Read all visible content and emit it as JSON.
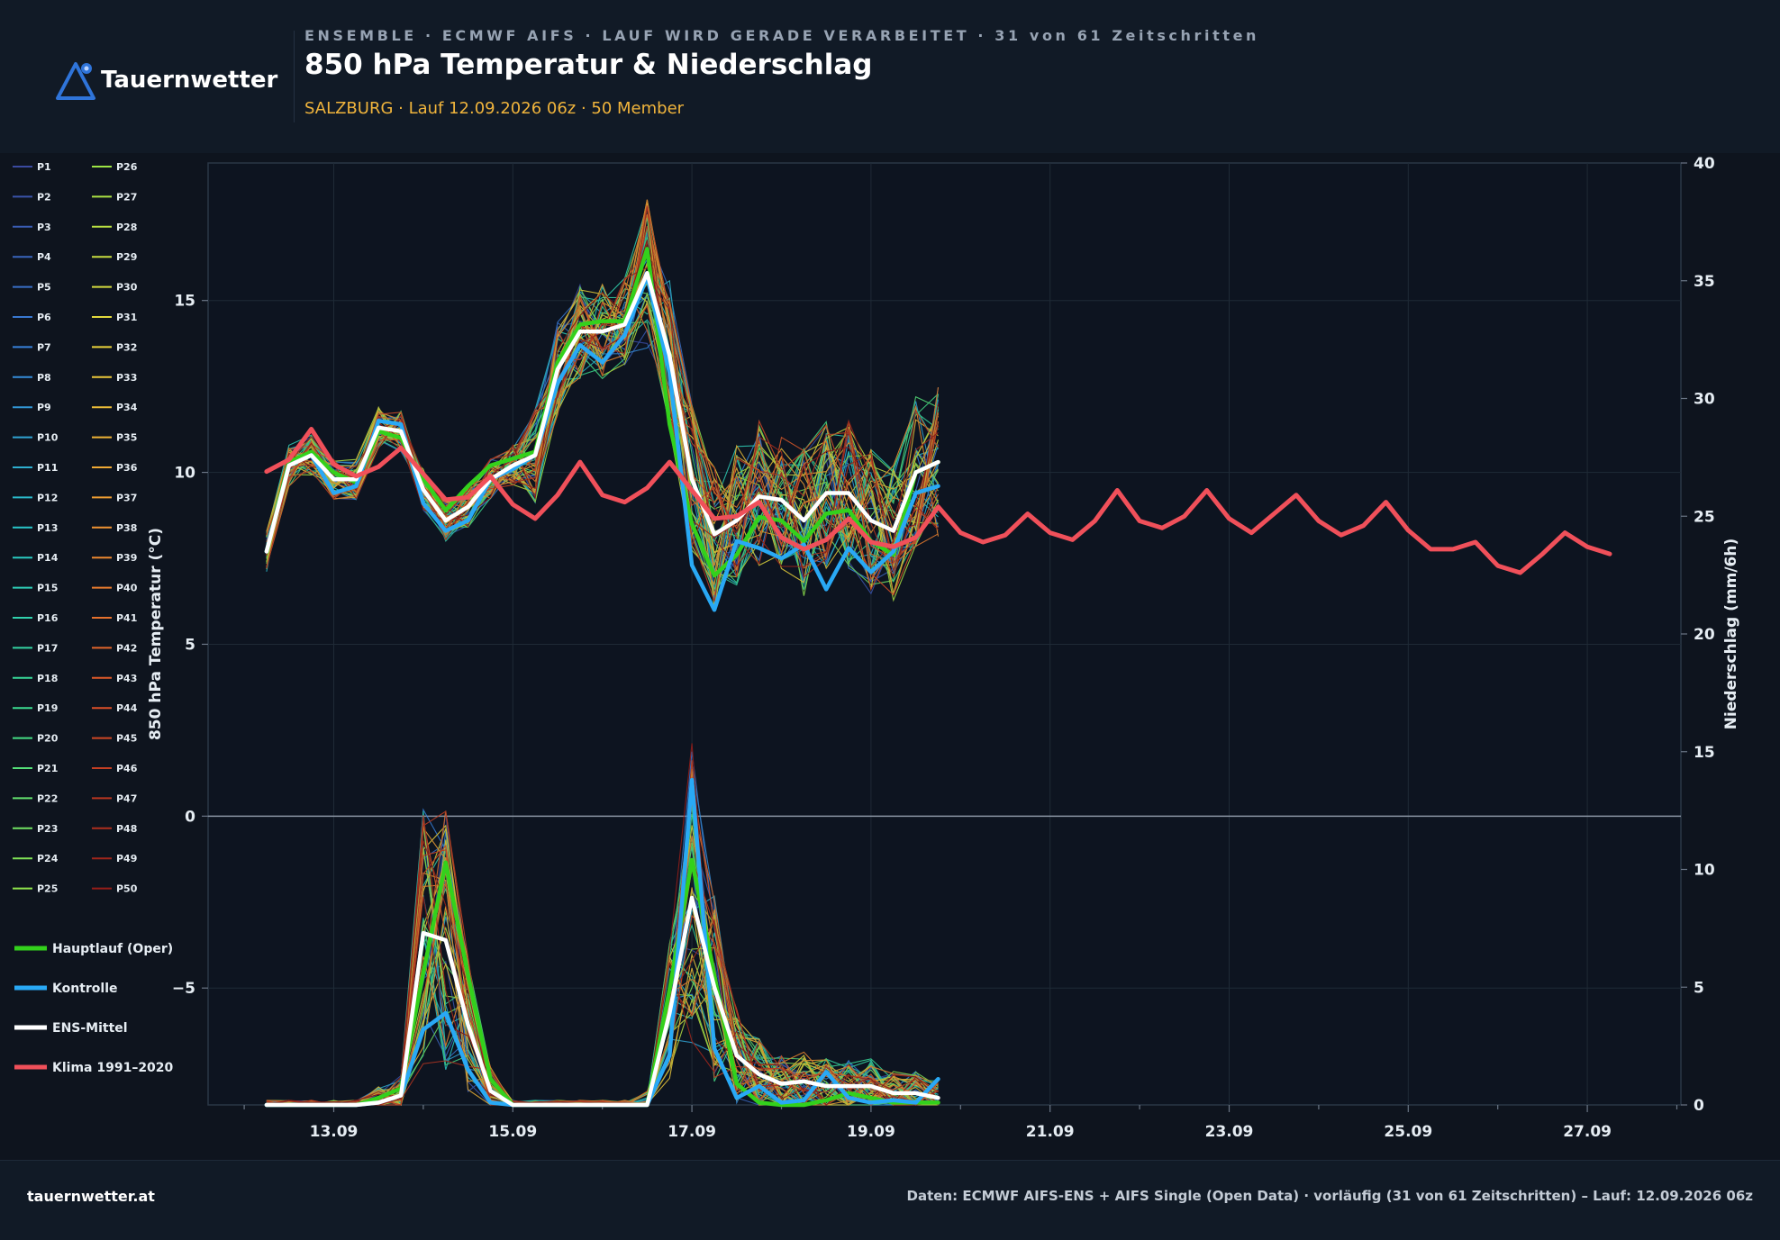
{
  "header": {
    "logo_text": "Tauernwetter",
    "kicker": "ENSEMBLE · ECMWF AIFS · LAUF WIRD GERADE VERARBEITET · 31 von 61 Zeitschritten",
    "title": "850 hPa Temperatur & Niederschlag",
    "subtitle": "SALZBURG · Lauf 12.09.2026 06z · 50 Member"
  },
  "footer": {
    "site": "tauernwetter.at",
    "source": "Daten: ECMWF AIFS-ENS + AIFS Single (Open Data) · vorläufig (31 von 61 Zeitschritten) – Lauf: 12.09.2026 06z"
  },
  "colors": {
    "oper": "#33d11c",
    "control": "#29a9f5",
    "mean": "#ffffff",
    "climate": "#f0505a",
    "background": "#0e141e",
    "grid": "#1f2a36"
  },
  "chart_data": {
    "type": "line",
    "x_unit": "date",
    "x_ticks": [
      "13.09",
      "15.09",
      "17.09",
      "19.09",
      "21.09",
      "23.09",
      "25.09",
      "27.09"
    ],
    "x_range": [
      "11.09 21z",
      "28.09 00z"
    ],
    "step_hours": 6,
    "y_left": {
      "label": "850 hPa Temperatur (°C)",
      "ticks": [
        -5,
        0,
        5,
        10,
        15
      ],
      "range": [
        -8.4,
        19
      ]
    },
    "y_right": {
      "label": "Niederschlag (mm/6h)",
      "ticks": [
        0,
        5,
        10,
        15,
        20,
        25,
        30,
        35,
        40
      ],
      "range": [
        0,
        40
      ]
    },
    "grid": true,
    "legend_position": "left",
    "member_labels": [
      "P1",
      "P2",
      "P3",
      "P4",
      "P5",
      "P6",
      "P7",
      "P8",
      "P9",
      "P10",
      "P11",
      "P12",
      "P13",
      "P14",
      "P15",
      "P16",
      "P17",
      "P18",
      "P19",
      "P20",
      "P21",
      "P22",
      "P23",
      "P24",
      "P25",
      "P26",
      "P27",
      "P28",
      "P29",
      "P30",
      "P31",
      "P32",
      "P33",
      "P34",
      "P35",
      "P36",
      "P37",
      "P38",
      "P39",
      "P40",
      "P41",
      "P42",
      "P43",
      "P44",
      "P45",
      "P46",
      "P47",
      "P48",
      "P49",
      "P50"
    ],
    "member_time_steps": 31,
    "series": [
      {
        "name": "Hauptlauf (Oper)",
        "key": "oper",
        "temperature": [
          7.7,
          10.3,
          10.6,
          10.0,
          9.7,
          11.2,
          11.0,
          9.8,
          8.9,
          9.6,
          10.2,
          10.4,
          10.6,
          13.2,
          14.3,
          14.4,
          14.4,
          16.5,
          11.4,
          8.5,
          7.0,
          7.6,
          8.7,
          8.6,
          8.0,
          8.8,
          8.9,
          8.0,
          7.6,
          10.0,
          10.3
        ],
        "precipitation": [
          0,
          0,
          0,
          0,
          0,
          0.3,
          0.7,
          5.6,
          10.3,
          5.5,
          1.1,
          0,
          0,
          0,
          0,
          0,
          0,
          0,
          4.9,
          10.4,
          5.5,
          0.9,
          0.1,
          0,
          0,
          0.2,
          0.5,
          0.3,
          0.1,
          0.1,
          0.1
        ]
      },
      {
        "name": "Kontrolle",
        "key": "control",
        "temperature": [
          7.7,
          10.2,
          10.5,
          9.4,
          9.6,
          11.5,
          11.4,
          9.1,
          8.3,
          8.6,
          9.8,
          10.1,
          10.5,
          12.6,
          13.7,
          13.2,
          14.0,
          15.7,
          12.9,
          7.3,
          6.0,
          8.0,
          7.8,
          7.5,
          7.9,
          6.6,
          7.8,
          7.1,
          7.7,
          9.4,
          9.6
        ],
        "precipitation": [
          0,
          0,
          0,
          0,
          0,
          0.1,
          0.4,
          3.2,
          3.9,
          1.5,
          0.1,
          0,
          0,
          0,
          0,
          0,
          0,
          0,
          2.1,
          13.8,
          2.4,
          0.3,
          0.8,
          0.1,
          0.2,
          1.4,
          0.3,
          0.1,
          0.2,
          0.1,
          1.1
        ]
      },
      {
        "name": "ENS-Mittel",
        "key": "mean",
        "temperature": [
          7.7,
          10.2,
          10.5,
          9.8,
          9.8,
          11.3,
          11.2,
          9.5,
          8.6,
          9.0,
          9.8,
          10.2,
          10.5,
          13.0,
          14.1,
          14.1,
          14.3,
          15.8,
          13.4,
          9.8,
          8.2,
          8.6,
          9.3,
          9.2,
          8.6,
          9.4,
          9.4,
          8.6,
          8.3,
          10.0,
          10.3
        ],
        "precipitation": [
          0,
          0,
          0,
          0,
          0,
          0.1,
          0.4,
          7.3,
          7.0,
          3.4,
          0.6,
          0,
          0,
          0,
          0,
          0,
          0,
          0,
          3.9,
          8.8,
          5.0,
          2.1,
          1.3,
          0.9,
          1.0,
          0.8,
          0.8,
          0.8,
          0.5,
          0.5,
          0.3
        ]
      },
      {
        "name": "Klima 1991–2020",
        "key": "climate",
        "precipitation": [
          26.9,
          27.4,
          28.7,
          27.2,
          26.7,
          27.1,
          27.9,
          26.8,
          25.7,
          25.8,
          26.7,
          25.5,
          24.9,
          25.9,
          27.3,
          25.9,
          25.6,
          26.2,
          27.3,
          26.1,
          24.9,
          25.0,
          25.6,
          24.1,
          23.6,
          24.0,
          24.9,
          23.9,
          23.7,
          24.1,
          25.4,
          24.3,
          23.9,
          24.2,
          25.1,
          24.3,
          24.0,
          24.8,
          26.1,
          24.8,
          24.5,
          25.0,
          26.1,
          24.9,
          24.3,
          25.1,
          25.9,
          24.8,
          24.2,
          24.6,
          25.6,
          24.4,
          23.6,
          23.6,
          23.9,
          22.9,
          22.6,
          23.4,
          24.3,
          23.7,
          23.4
        ]
      }
    ]
  }
}
